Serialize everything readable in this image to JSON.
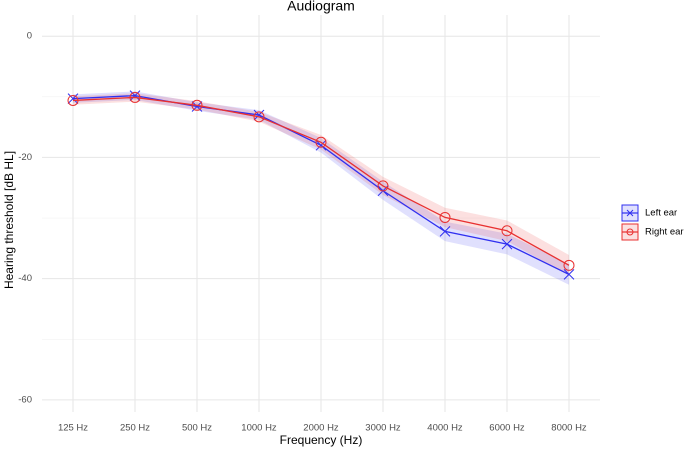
{
  "chart_data": {
    "type": "line",
    "title": "Audiogram",
    "x_label": "Frequency (Hz)",
    "y_label": "Hearing threshold [dB HL]",
    "categories": [
      "125 Hz",
      "250 Hz",
      "500 Hz",
      "1000 Hz",
      "2000 Hz",
      "3000 Hz",
      "4000 Hz",
      "6000 Hz",
      "8000 Hz"
    ],
    "ylim": [
      -62,
      3.5
    ],
    "yticks": [
      -60,
      -40,
      -20,
      0
    ],
    "minor_yticks": [
      -50,
      -30,
      -10
    ],
    "grid": true,
    "legend": "right",
    "series": [
      {
        "name": "Left ear",
        "color": "#3030f0",
        "marker": "x",
        "values": [
          -10.3,
          -9.8,
          -11.6,
          -13.0,
          -18.0,
          -25.5,
          -32.2,
          -34.3,
          -39.3
        ],
        "lower": [
          -11,
          -10.5,
          -12.3,
          -13.8,
          -19.2,
          -27,
          -33.8,
          -36,
          -41
        ],
        "upper": [
          -9.6,
          -9.1,
          -10.9,
          -12.2,
          -16.8,
          -24,
          -30.6,
          -32.6,
          -37.6
        ]
      },
      {
        "name": "Right ear",
        "color": "#e83030",
        "marker": "circle",
        "values": [
          -10.6,
          -10.1,
          -11.4,
          -13.3,
          -17.5,
          -24.7,
          -29.9,
          -32.1,
          -37.8
        ],
        "lower": [
          -11.3,
          -10.8,
          -12.1,
          -14.1,
          -18.7,
          -26.2,
          -31.5,
          -33.8,
          -39.5
        ],
        "upper": [
          -9.9,
          -9.4,
          -10.7,
          -12.5,
          -16.3,
          -23.2,
          -28.3,
          -30.4,
          -36.1
        ]
      }
    ]
  }
}
